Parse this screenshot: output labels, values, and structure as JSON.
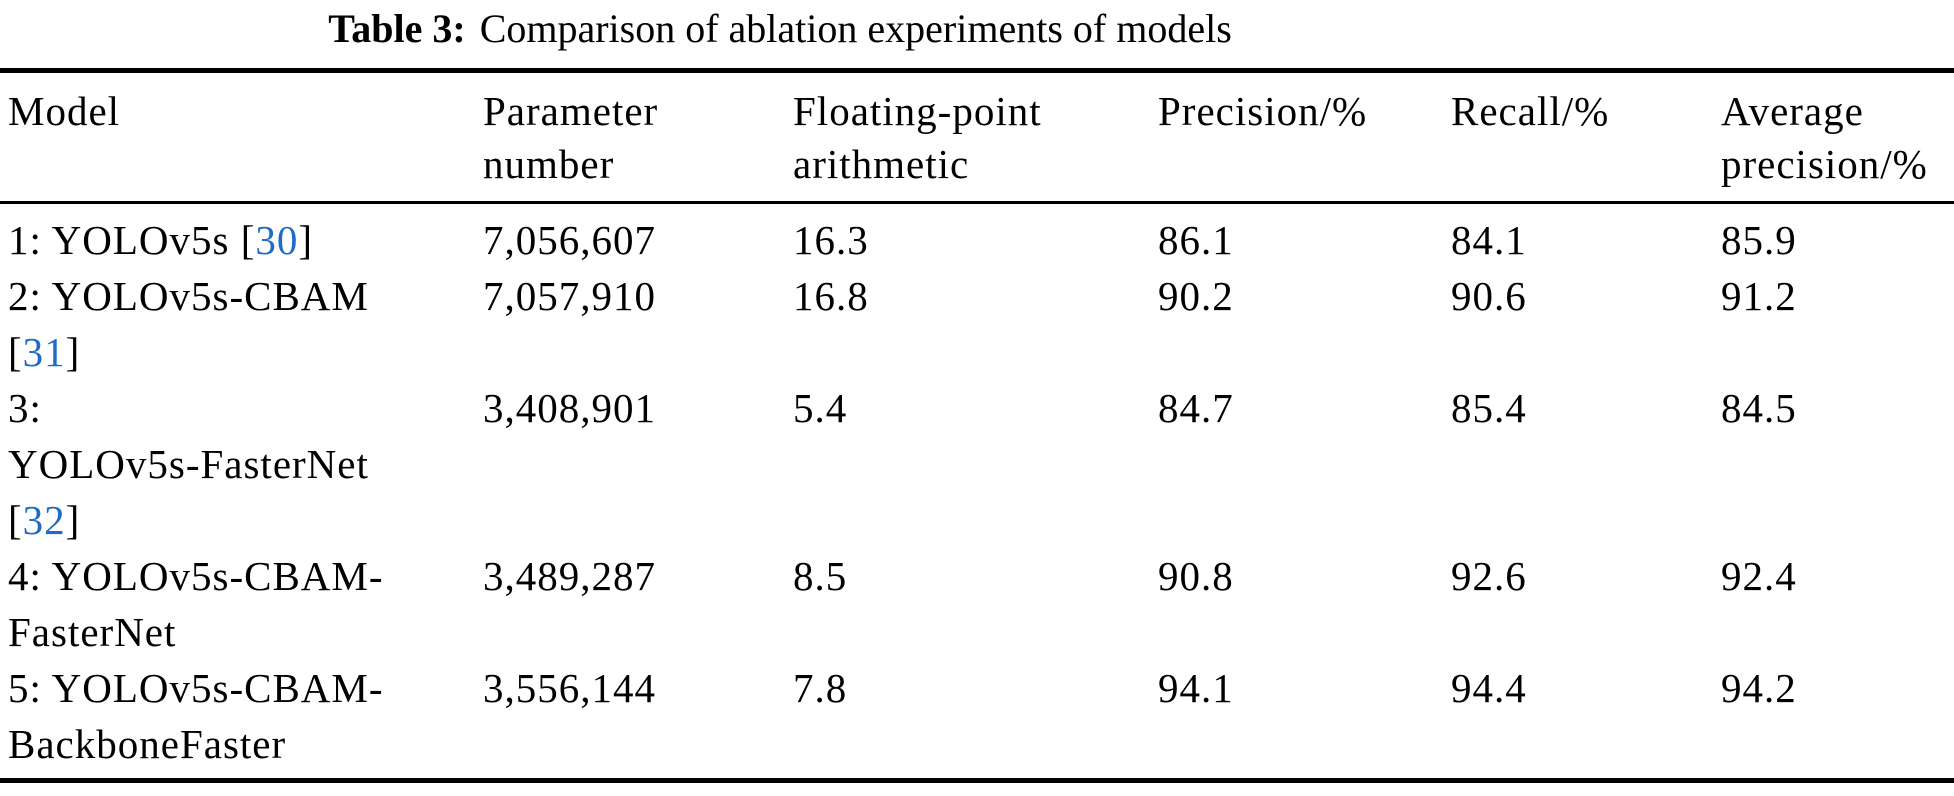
{
  "caption": {
    "label": "Table 3:",
    "text": "Comparison of ablation experiments of models"
  },
  "colors": {
    "citation_blue": "#1f6cc5",
    "text_black": "#000000",
    "background": "#ffffff"
  },
  "table": {
    "columns": [
      {
        "id": "model",
        "label": "Model"
      },
      {
        "id": "parameter_number",
        "label": "Parameter\nnumber"
      },
      {
        "id": "floating_point",
        "label": "Floating-point\narithmetic"
      },
      {
        "id": "precision",
        "label": "Precision/%"
      },
      {
        "id": "recall",
        "label": "Recall/%"
      },
      {
        "id": "average_precision",
        "label": "Average\nprecision/%"
      }
    ],
    "rows": [
      {
        "model_lines": [
          [
            {
              "text": "1: YOLOv5s ["
            },
            {
              "text": "30",
              "citation": true
            },
            {
              "text": "]"
            }
          ]
        ],
        "parameter_number": "7,056,607",
        "floating_point": "16.3",
        "precision": "86.1",
        "recall": "84.1",
        "average_precision": "85.9"
      },
      {
        "model_lines": [
          [
            {
              "text": "2: YOLOv5s-CBAM"
            }
          ],
          [
            {
              "text": "["
            },
            {
              "text": "31",
              "citation": true
            },
            {
              "text": "]"
            }
          ]
        ],
        "parameter_number": "7,057,910",
        "floating_point": "16.8",
        "precision": "90.2",
        "recall": "90.6",
        "average_precision": "91.2"
      },
      {
        "model_lines": [
          [
            {
              "text": "3:"
            }
          ],
          [
            {
              "text": "YOLOv5s-FasterNet"
            }
          ],
          [
            {
              "text": "["
            },
            {
              "text": "32",
              "citation": true
            },
            {
              "text": "]"
            }
          ]
        ],
        "parameter_number": "3,408,901",
        "floating_point": "5.4",
        "precision": "84.7",
        "recall": "85.4",
        "average_precision": "84.5"
      },
      {
        "model_lines": [
          [
            {
              "text": "4: YOLOv5s-CBAM-"
            }
          ],
          [
            {
              "text": "FasterNet"
            }
          ]
        ],
        "parameter_number": "3,489,287",
        "floating_point": "8.5",
        "precision": "90.8",
        "recall": "92.6",
        "average_precision": "92.4"
      },
      {
        "model_lines": [
          [
            {
              "text": "5: YOLOv5s-CBAM-"
            }
          ],
          [
            {
              "text": "BackboneFaster"
            }
          ]
        ],
        "parameter_number": "3,556,144",
        "floating_point": "7.8",
        "precision": "94.1",
        "recall": "94.4",
        "average_precision": "94.2"
      }
    ]
  }
}
